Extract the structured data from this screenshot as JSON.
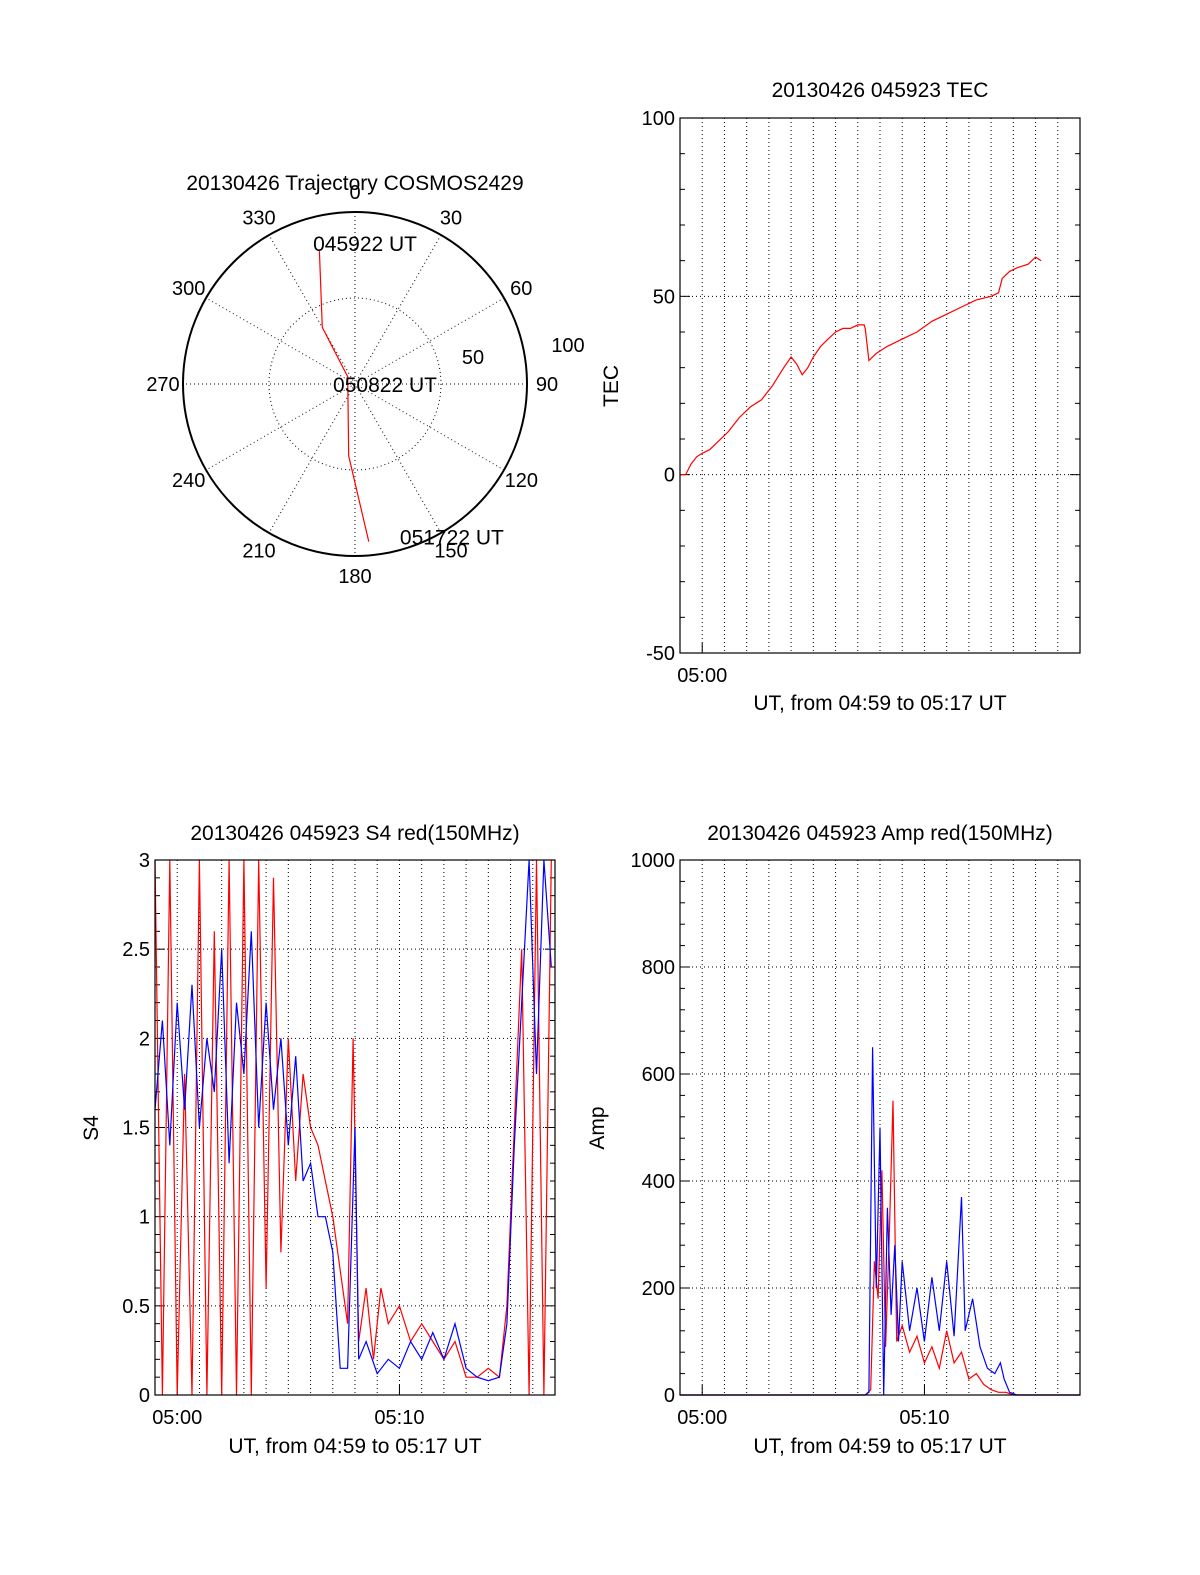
{
  "chart_data": [
    {
      "id": "trajectory",
      "type": "polar",
      "title": "20130426 Trajectory COSMOS2429",
      "angle_labels": [
        "0",
        "30",
        "60",
        "90",
        "120",
        "150",
        "180",
        "210",
        "240",
        "270",
        "300",
        "330"
      ],
      "radial_labels": [
        "50",
        "100"
      ],
      "rlim": [
        0,
        100
      ],
      "grid": true,
      "series": [
        {
          "color": "#ff0000",
          "points": [
            {
              "az": 345,
              "r": 80
            },
            {
              "az": 330,
              "r": 38
            },
            {
              "az": 315,
              "r": 6
            },
            {
              "az": 185,
              "r": 42
            },
            {
              "az": 175,
              "r": 92
            }
          ]
        }
      ],
      "annotations": [
        {
          "text": "045922 UT",
          "az": 358,
          "r": 82
        },
        {
          "text": "050822 UT",
          "az": 90,
          "r": 0
        },
        {
          "text": "051722 UT",
          "az": 170,
          "r": 90
        }
      ]
    },
    {
      "id": "tec",
      "type": "line",
      "title": "20130426 045923 TEC",
      "xlabel": "UT, from 04:59 to 05:17 UT",
      "ylabel": "TEC",
      "xlim": [
        0,
        1080
      ],
      "ylim": [
        -50,
        100
      ],
      "x_units": "seconds after 04:59:00",
      "x_ticks": [
        {
          "x": 60,
          "label": "05:00"
        }
      ],
      "y_ticks": [
        "-50",
        "0",
        "50",
        "100"
      ],
      "grid": true,
      "series": [
        {
          "color": "#ff0000",
          "points": [
            [
              0,
              0
            ],
            [
              15,
              0
            ],
            [
              30,
              3
            ],
            [
              45,
              5
            ],
            [
              60,
              6
            ],
            [
              80,
              7
            ],
            [
              100,
              9
            ],
            [
              130,
              12
            ],
            [
              160,
              16
            ],
            [
              190,
              19
            ],
            [
              220,
              21
            ],
            [
              250,
              25
            ],
            [
              280,
              30
            ],
            [
              300,
              33
            ],
            [
              315,
              31
            ],
            [
              330,
              28
            ],
            [
              345,
              30
            ],
            [
              360,
              33
            ],
            [
              380,
              36
            ],
            [
              400,
              38
            ],
            [
              420,
              40
            ],
            [
              440,
              41
            ],
            [
              460,
              41
            ],
            [
              480,
              42
            ],
            [
              497,
              42
            ],
            [
              500,
              41
            ],
            [
              510,
              32
            ],
            [
              530,
              34
            ],
            [
              560,
              36
            ],
            [
              600,
              38
            ],
            [
              640,
              40
            ],
            [
              680,
              43
            ],
            [
              720,
              45
            ],
            [
              760,
              47
            ],
            [
              800,
              49
            ],
            [
              840,
              50
            ],
            [
              860,
              51
            ],
            [
              870,
              55
            ],
            [
              890,
              57
            ],
            [
              910,
              58
            ],
            [
              940,
              59
            ],
            [
              960,
              61
            ],
            [
              975,
              60
            ]
          ]
        }
      ]
    },
    {
      "id": "s4",
      "type": "line",
      "title": "20130426 045923 S4 red(150MHz)",
      "xlabel": "UT, from 04:59 to 05:17 UT",
      "ylabel": "S4",
      "xlim": [
        0,
        1080
      ],
      "ylim": [
        0,
        3
      ],
      "x_units": "seconds after 04:59:00",
      "x_ticks": [
        {
          "x": 60,
          "label": "05:00"
        },
        {
          "x": 660,
          "label": "05:10"
        }
      ],
      "y_ticks": [
        "0",
        "0.5",
        "1",
        "1.5",
        "2",
        "2.5",
        "3"
      ],
      "grid": true,
      "series": [
        {
          "color": "#ff0000",
          "points": [
            [
              0,
              3
            ],
            [
              20,
              0
            ],
            [
              40,
              3
            ],
            [
              60,
              0
            ],
            [
              80,
              1.8
            ],
            [
              100,
              0
            ],
            [
              120,
              3
            ],
            [
              140,
              0
            ],
            [
              160,
              2.6
            ],
            [
              180,
              0
            ],
            [
              200,
              3
            ],
            [
              220,
              0
            ],
            [
              240,
              3
            ],
            [
              260,
              0
            ],
            [
              280,
              3
            ],
            [
              300,
              0.6
            ],
            [
              320,
              2.9
            ],
            [
              340,
              0.8
            ],
            [
              360,
              2.0
            ],
            [
              380,
              1.2
            ],
            [
              400,
              1.8
            ],
            [
              420,
              1.5
            ],
            [
              440,
              1.4
            ],
            [
              460,
              1.2
            ],
            [
              480,
              1.0
            ],
            [
              500,
              0.7
            ],
            [
              520,
              0.4
            ],
            [
              535,
              2.0
            ],
            [
              550,
              0.3
            ],
            [
              570,
              0.6
            ],
            [
              590,
              0.2
            ],
            [
              610,
              0.6
            ],
            [
              630,
              0.4
            ],
            [
              660,
              0.5
            ],
            [
              690,
              0.3
            ],
            [
              720,
              0.4
            ],
            [
              750,
              0.3
            ],
            [
              780,
              0.2
            ],
            [
              810,
              0.3
            ],
            [
              840,
              0.1
            ],
            [
              870,
              0.1
            ],
            [
              900,
              0.15
            ],
            [
              930,
              0.1
            ],
            [
              950,
              0.5
            ],
            [
              970,
              1.5
            ],
            [
              990,
              2.5
            ],
            [
              1010,
              0
            ],
            [
              1030,
              3
            ],
            [
              1050,
              0
            ],
            [
              1070,
              3
            ]
          ]
        },
        {
          "color": "#0000ff",
          "points": [
            [
              0,
              1.6
            ],
            [
              20,
              2.1
            ],
            [
              40,
              1.4
            ],
            [
              60,
              2.2
            ],
            [
              80,
              1.6
            ],
            [
              100,
              2.3
            ],
            [
              120,
              1.5
            ],
            [
              140,
              2.0
            ],
            [
              160,
              1.7
            ],
            [
              180,
              2.5
            ],
            [
              200,
              1.3
            ],
            [
              220,
              2.2
            ],
            [
              240,
              1.8
            ],
            [
              260,
              2.6
            ],
            [
              280,
              1.5
            ],
            [
              300,
              2.2
            ],
            [
              320,
              1.6
            ],
            [
              340,
              2.0
            ],
            [
              360,
              1.4
            ],
            [
              380,
              1.9
            ],
            [
              400,
              1.2
            ],
            [
              420,
              1.3
            ],
            [
              440,
              1.0
            ],
            [
              460,
              1.0
            ],
            [
              480,
              0.8
            ],
            [
              500,
              0.15
            ],
            [
              520,
              0.15
            ],
            [
              540,
              1.5
            ],
            [
              550,
              0.2
            ],
            [
              570,
              0.3
            ],
            [
              600,
              0.12
            ],
            [
              630,
              0.2
            ],
            [
              660,
              0.15
            ],
            [
              690,
              0.3
            ],
            [
              720,
              0.2
            ],
            [
              750,
              0.35
            ],
            [
              780,
              0.2
            ],
            [
              810,
              0.4
            ],
            [
              840,
              0.15
            ],
            [
              870,
              0.1
            ],
            [
              900,
              0.08
            ],
            [
              930,
              0.1
            ],
            [
              950,
              0.4
            ],
            [
              970,
              1.4
            ],
            [
              990,
              2.2
            ],
            [
              1010,
              3
            ],
            [
              1030,
              1.8
            ],
            [
              1050,
              3
            ],
            [
              1070,
              2.4
            ]
          ]
        }
      ]
    },
    {
      "id": "amp",
      "type": "line",
      "title": "20130426 045923 Amp red(150MHz)",
      "xlabel": "UT, from 04:59 to 05:17 UT",
      "ylabel": "Amp",
      "xlim": [
        0,
        1080
      ],
      "ylim": [
        0,
        1000
      ],
      "x_units": "seconds after 04:59:00",
      "x_ticks": [
        {
          "x": 60,
          "label": "05:00"
        },
        {
          "x": 660,
          "label": "05:10"
        }
      ],
      "y_ticks": [
        "0",
        "200",
        "400",
        "600",
        "800",
        "1000"
      ],
      "grid": true,
      "series": [
        {
          "color": "#ff0000",
          "points": [
            [
              0,
              0
            ],
            [
              500,
              0
            ],
            [
              515,
              10
            ],
            [
              525,
              250
            ],
            [
              535,
              180
            ],
            [
              545,
              420
            ],
            [
              555,
              90
            ],
            [
              565,
              300
            ],
            [
              575,
              550
            ],
            [
              585,
              100
            ],
            [
              600,
              130
            ],
            [
              620,
              80
            ],
            [
              640,
              110
            ],
            [
              660,
              60
            ],
            [
              680,
              90
            ],
            [
              700,
              50
            ],
            [
              720,
              120
            ],
            [
              740,
              60
            ],
            [
              760,
              80
            ],
            [
              780,
              30
            ],
            [
              800,
              40
            ],
            [
              820,
              20
            ],
            [
              840,
              10
            ],
            [
              860,
              5
            ],
            [
              880,
              5
            ],
            [
              900,
              0
            ],
            [
              1080,
              0
            ]
          ]
        },
        {
          "color": "#0000ff",
          "points": [
            [
              0,
              0
            ],
            [
              500,
              0
            ],
            [
              510,
              5
            ],
            [
              520,
              650
            ],
            [
              530,
              200
            ],
            [
              540,
              500
            ],
            [
              550,
              0
            ],
            [
              560,
              350
            ],
            [
              570,
              150
            ],
            [
              580,
              280
            ],
            [
              590,
              100
            ],
            [
              600,
              250
            ],
            [
              620,
              120
            ],
            [
              640,
              200
            ],
            [
              660,
              100
            ],
            [
              680,
              220
            ],
            [
              700,
              120
            ],
            [
              720,
              250
            ],
            [
              740,
              110
            ],
            [
              760,
              370
            ],
            [
              770,
              120
            ],
            [
              790,
              180
            ],
            [
              810,
              90
            ],
            [
              830,
              50
            ],
            [
              850,
              40
            ],
            [
              865,
              60
            ],
            [
              875,
              30
            ],
            [
              890,
              5
            ],
            [
              910,
              0
            ],
            [
              1080,
              0
            ]
          ]
        }
      ]
    }
  ]
}
